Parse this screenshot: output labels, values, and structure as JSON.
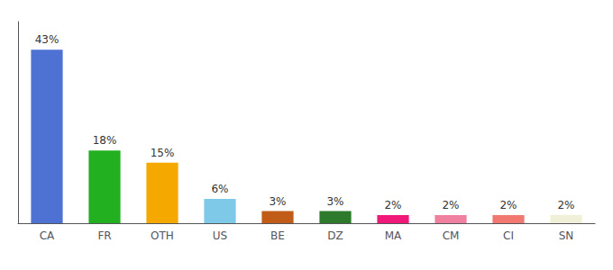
{
  "chart_data": {
    "type": "bar",
    "categories": [
      "CA",
      "FR",
      "OTH",
      "US",
      "BE",
      "DZ",
      "MA",
      "CM",
      "CI",
      "SN"
    ],
    "values": [
      43,
      18,
      15,
      6,
      3,
      3,
      2,
      2,
      2,
      2
    ],
    "value_labels": [
      "43%",
      "18%",
      "15%",
      "6%",
      "3%",
      "3%",
      "2%",
      "2%",
      "2%",
      "2%"
    ],
    "colors": [
      "#4d72d4",
      "#22b020",
      "#f5a800",
      "#7ec8e8",
      "#c05c18",
      "#2d7a2d",
      "#f01878",
      "#f080a0",
      "#f07870",
      "#f0f0d8"
    ],
    "ylim": [
      0,
      50
    ],
    "grid": false,
    "data_labels": true,
    "tick_labels": "x"
  }
}
